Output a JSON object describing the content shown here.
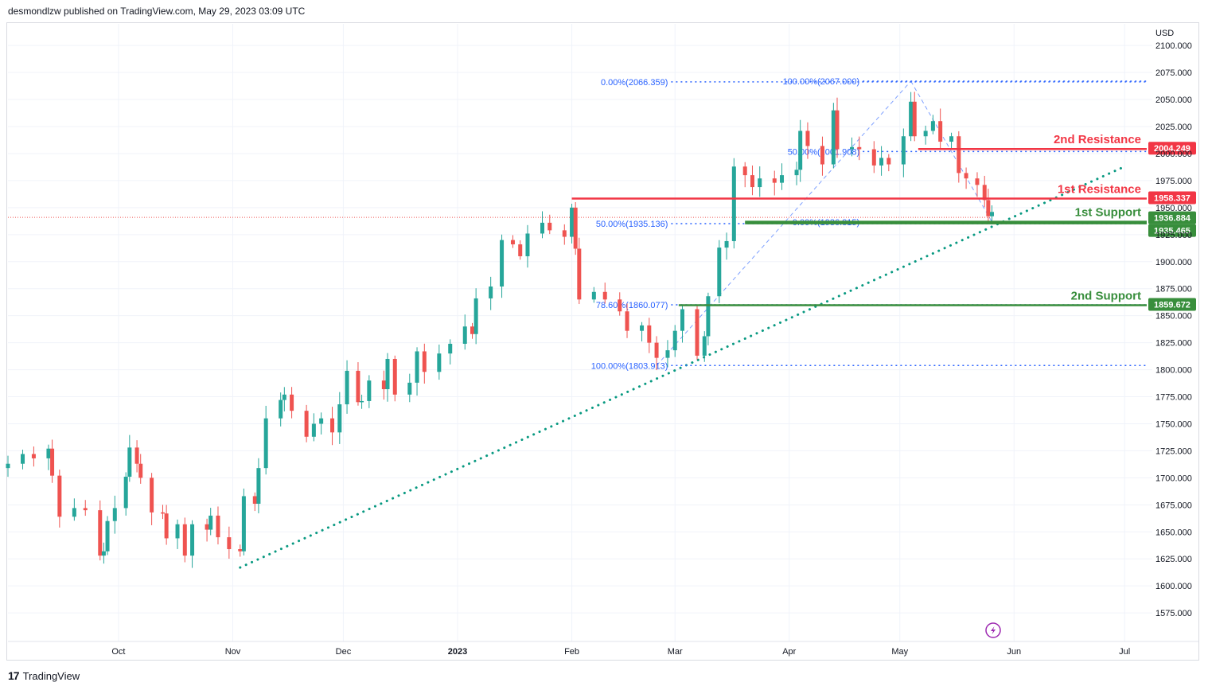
{
  "header": {
    "published_text": "desmondlzw published on TradingView.com, May 29, 2023 03:09 UTC"
  },
  "footer": {
    "brand": "TradingView"
  },
  "colors": {
    "bull": "#26a69a",
    "bear": "#ef5350",
    "resistance": "#f23645",
    "support": "#388e3c",
    "fib": "#2962ff",
    "trend": "#089981"
  },
  "chart_data": {
    "type": "candlestick",
    "currency_label": "USD",
    "ylim": [
      1553,
      2120
    ],
    "y_ticks": [
      "1575.000",
      "1600.000",
      "1625.000",
      "1650.000",
      "1675.000",
      "1700.000",
      "1725.000",
      "1750.000",
      "1775.000",
      "1800.000",
      "1825.000",
      "1850.000",
      "1875.000",
      "1900.000",
      "1925.000",
      "1950.000",
      "1975.000",
      "2000.000",
      "2025.000",
      "2050.000",
      "2075.000",
      "2100.000"
    ],
    "x_ticks": [
      {
        "label": "Oct",
        "date": "2022-10-01"
      },
      {
        "label": "Nov",
        "date": "2022-11-01"
      },
      {
        "label": "Dec",
        "date": "2022-12-01"
      },
      {
        "label": "2023",
        "date": "2023-01-01",
        "bold": true
      },
      {
        "label": "Feb",
        "date": "2023-02-01"
      },
      {
        "label": "Mar",
        "date": "2023-03-01"
      },
      {
        "label": "Apr",
        "date": "2023-04-01"
      },
      {
        "label": "May",
        "date": "2023-05-01"
      },
      {
        "label": "Jun",
        "date": "2023-06-01"
      },
      {
        "label": "Jul",
        "date": "2023-07-01"
      }
    ],
    "x_range": [
      "2022-09-01",
      "2023-07-07"
    ],
    "closes": [
      [
        "2022-09-01",
        1713
      ],
      [
        "2022-09-05",
        1722
      ],
      [
        "2022-09-08",
        1718
      ],
      [
        "2022-09-12",
        1727
      ],
      [
        "2022-09-13",
        1702
      ],
      [
        "2022-09-15",
        1664
      ],
      [
        "2022-09-19",
        1672
      ],
      [
        "2022-09-22",
        1670
      ],
      [
        "2022-09-26",
        1628
      ],
      [
        "2022-09-27",
        1632
      ],
      [
        "2022-09-28",
        1660
      ],
      [
        "2022-09-30",
        1672
      ],
      [
        "2022-10-03",
        1701
      ],
      [
        "2022-10-04",
        1728
      ],
      [
        "2022-10-06",
        1713
      ],
      [
        "2022-10-07",
        1700
      ],
      [
        "2022-10-10",
        1668
      ],
      [
        "2022-10-13",
        1667
      ],
      [
        "2022-10-14",
        1644
      ],
      [
        "2022-10-17",
        1657
      ],
      [
        "2022-10-19",
        1628
      ],
      [
        "2022-10-21",
        1657
      ],
      [
        "2022-10-25",
        1652
      ],
      [
        "2022-10-26",
        1665
      ],
      [
        "2022-10-28",
        1645
      ],
      [
        "2022-10-31",
        1634
      ],
      [
        "2022-11-03",
        1632
      ],
      [
        "2022-11-04",
        1683
      ],
      [
        "2022-11-07",
        1676
      ],
      [
        "2022-11-08",
        1709
      ],
      [
        "2022-11-10",
        1755
      ],
      [
        "2022-11-14",
        1772
      ],
      [
        "2022-11-15",
        1777
      ],
      [
        "2022-11-17",
        1762
      ],
      [
        "2022-11-21",
        1738
      ],
      [
        "2022-11-23",
        1750
      ],
      [
        "2022-11-25",
        1755
      ],
      [
        "2022-11-28",
        1742
      ],
      [
        "2022-11-30",
        1768
      ],
      [
        "2022-12-02",
        1799
      ],
      [
        "2022-12-05",
        1770
      ],
      [
        "2022-12-06",
        1771
      ],
      [
        "2022-12-08",
        1790
      ],
      [
        "2022-12-12",
        1782
      ],
      [
        "2022-12-13",
        1810
      ],
      [
        "2022-12-15",
        1777
      ],
      [
        "2022-12-19",
        1788
      ],
      [
        "2022-12-21",
        1817
      ],
      [
        "2022-12-23",
        1798
      ],
      [
        "2022-12-27",
        1815
      ],
      [
        "2022-12-30",
        1824
      ],
      [
        "2023-01-03",
        1840
      ],
      [
        "2023-01-05",
        1833
      ],
      [
        "2023-01-06",
        1866
      ],
      [
        "2023-01-10",
        1877
      ],
      [
        "2023-01-13",
        1920
      ],
      [
        "2023-01-16",
        1916
      ],
      [
        "2023-01-18",
        1905
      ],
      [
        "2023-01-20",
        1926
      ],
      [
        "2023-01-24",
        1936
      ],
      [
        "2023-01-26",
        1929
      ],
      [
        "2023-01-30",
        1923
      ],
      [
        "2023-02-01",
        1950
      ],
      [
        "2023-02-02",
        1912
      ],
      [
        "2023-02-03",
        1865
      ],
      [
        "2023-02-07",
        1872
      ],
      [
        "2023-02-10",
        1865
      ],
      [
        "2023-02-14",
        1854
      ],
      [
        "2023-02-16",
        1836
      ],
      [
        "2023-02-20",
        1841
      ],
      [
        "2023-02-22",
        1825
      ],
      [
        "2023-02-24",
        1811
      ],
      [
        "2023-02-27",
        1818
      ],
      [
        "2023-03-01",
        1836
      ],
      [
        "2023-03-03",
        1856
      ],
      [
        "2023-03-07",
        1813
      ],
      [
        "2023-03-09",
        1831
      ],
      [
        "2023-03-10",
        1868
      ],
      [
        "2023-03-13",
        1913
      ],
      [
        "2023-03-15",
        1919
      ],
      [
        "2023-03-17",
        1988
      ],
      [
        "2023-03-20",
        1980
      ],
      [
        "2023-03-22",
        1969
      ],
      [
        "2023-03-24",
        1977
      ],
      [
        "2023-03-28",
        1973
      ],
      [
        "2023-03-30",
        1980
      ],
      [
        "2023-04-03",
        1985
      ],
      [
        "2023-04-04",
        2021
      ],
      [
        "2023-04-06",
        2007
      ],
      [
        "2023-04-10",
        1990
      ],
      [
        "2023-04-13",
        2040
      ],
      [
        "2023-04-14",
        2004
      ],
      [
        "2023-04-18",
        2006
      ],
      [
        "2023-04-20",
        2004
      ],
      [
        "2023-04-24",
        1989
      ],
      [
        "2023-04-26",
        1996
      ],
      [
        "2023-04-28",
        1990
      ],
      [
        "2023-05-02",
        2016
      ],
      [
        "2023-05-04",
        2048
      ],
      [
        "2023-05-05",
        2016
      ],
      [
        "2023-05-08",
        2021
      ],
      [
        "2023-05-10",
        2030
      ],
      [
        "2023-05-12",
        2011
      ],
      [
        "2023-05-15",
        2016
      ],
      [
        "2023-05-17",
        1982
      ],
      [
        "2023-05-19",
        1977
      ],
      [
        "2023-05-22",
        1971
      ],
      [
        "2023-05-24",
        1957
      ],
      [
        "2023-05-25",
        1942
      ],
      [
        "2023-05-26",
        1946
      ]
    ],
    "horizontal_levels": [
      {
        "name": "2nd Resistance",
        "value": 2004.249,
        "label": "2004.249",
        "start_date": "2023-05-06"
      },
      {
        "name": "1st Resistance",
        "value": 1958.337,
        "label": "1958.337",
        "start_date": "2023-02-01"
      },
      {
        "name": "1st Support",
        "value": 1936.884,
        "label": "1936.884",
        "start_date": "2023-03-20"
      },
      {
        "name": "",
        "value": 1935.465,
        "label": "1935.465",
        "start_date": "2023-03-20"
      },
      {
        "name": "2nd Support",
        "value": 1859.672,
        "label": "1859.672",
        "start_date": "2023-03-02"
      }
    ],
    "fib_levels": [
      {
        "label": "0.00%(2066.359)",
        "value": 2066.359,
        "start_date": "2023-02-15"
      },
      {
        "label": "50.00%(1935.136)",
        "value": 1935.136,
        "start_date": "2023-02-15"
      },
      {
        "label": "78.60%(1860.077)",
        "value": 1860.077,
        "start_date": "2023-02-15"
      },
      {
        "label": "100.00%(1803.913)",
        "value": 1803.913,
        "start_date": "2023-02-15"
      },
      {
        "label": "100.00%(2067.000)",
        "value": 2067.0,
        "start_date": "2023-04-08"
      },
      {
        "label": "50.00%(2001.908)",
        "value": 2001.908,
        "start_date": "2023-04-08"
      },
      {
        "label": "0.00%(1936.815)",
        "value": 1936.815,
        "start_date": "2023-04-08"
      }
    ],
    "trendline": {
      "from": [
        "2022-11-03",
        1617
      ],
      "to": [
        "2023-07-01",
        1988
      ]
    },
    "current_price_line": 1941
  }
}
